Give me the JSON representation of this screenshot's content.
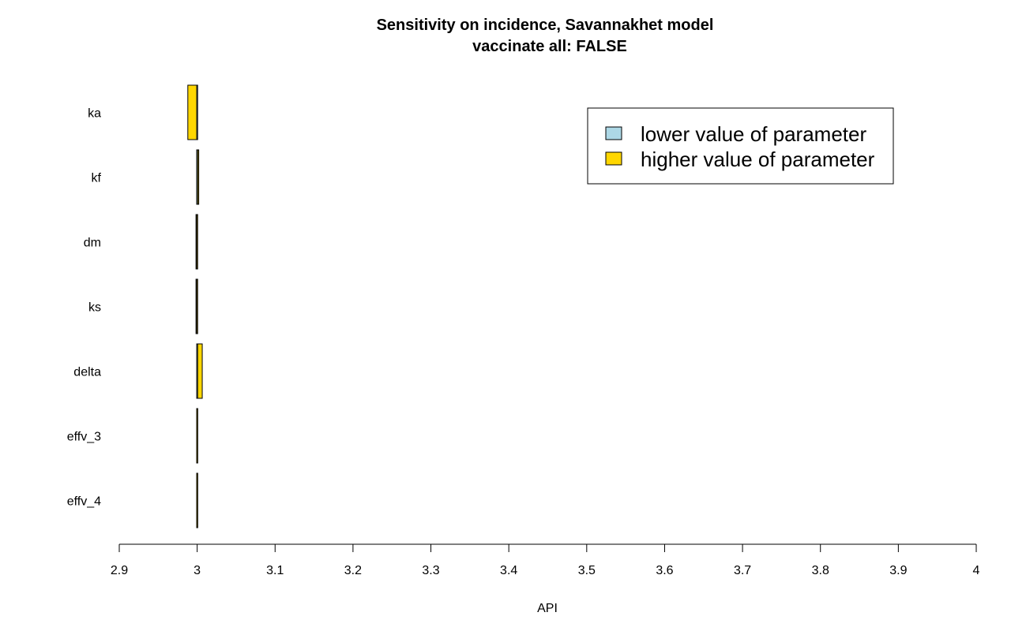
{
  "chart_data": {
    "type": "bar",
    "orientation": "horizontal",
    "title": "Sensitivity on incidence, Savannakhet model",
    "subtitle": "vaccinate all: FALSE",
    "xlabel": "API",
    "ylabel": "",
    "xlim": [
      2.9,
      4.0
    ],
    "baseline": 3.0,
    "x_ticks": [
      "2.9",
      "3",
      "3.1",
      "3.2",
      "3.3",
      "3.4",
      "3.5",
      "3.6",
      "3.7",
      "3.8",
      "3.9",
      "4"
    ],
    "grid": false,
    "legend_position": "top-right",
    "categories": [
      "ka",
      "kf",
      "dm",
      "ks",
      "delta",
      "effv_3",
      "effv_4"
    ],
    "series": [
      {
        "name": "lower value of parameter",
        "color": "#ADD8E6",
        "values": [
          2.999,
          3.001,
          2.9985,
          2.9985,
          3.001,
          2.9995,
          3.0
        ]
      },
      {
        "name": "higher value of parameter",
        "color": "#FFD700",
        "values": [
          2.988,
          3.002,
          3.0,
          3.0,
          3.0065,
          3.0,
          3.0
        ]
      }
    ]
  }
}
